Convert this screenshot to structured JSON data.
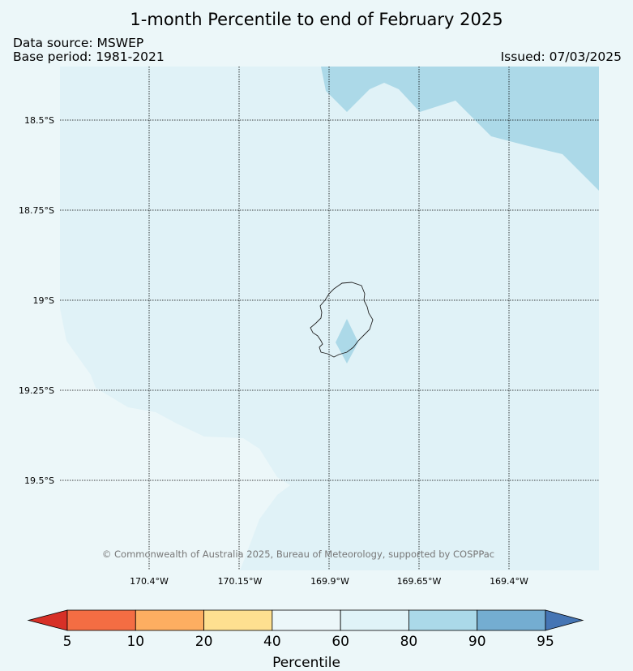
{
  "title": "1-month Percentile to end of February 2025",
  "data_source": "Data source: MSWEP",
  "base_period": "Base period: 1981-2021",
  "issued": "Issued: 07/03/2025",
  "credit": "© Commonwealth of Australia 2025, Bureau of Meteorology, supported by COSPPac",
  "map": {
    "lat_labels": [
      "18.5°S",
      "18.75°S",
      "19°S",
      "19.25°S",
      "19.5°S"
    ],
    "lon_labels": [
      "170.4°W",
      "170.15°W",
      "169.9°W",
      "169.65°W",
      "169.4°W"
    ],
    "region_colors": {
      "background": "#e0f2f7",
      "low_band": "#ecf7f9",
      "high_band": "#acd9e8",
      "land_patch": "#acd9e8"
    }
  },
  "colorbar": {
    "title": "Percentile",
    "ticks": [
      "5",
      "10",
      "20",
      "40",
      "60",
      "80",
      "90",
      "95"
    ],
    "colors": [
      "#d73027",
      "#f46d43",
      "#fdae61",
      "#fee090",
      "#ecf7f9",
      "#e0f3f8",
      "#abd9e9",
      "#74add1",
      "#4575b4"
    ]
  }
}
